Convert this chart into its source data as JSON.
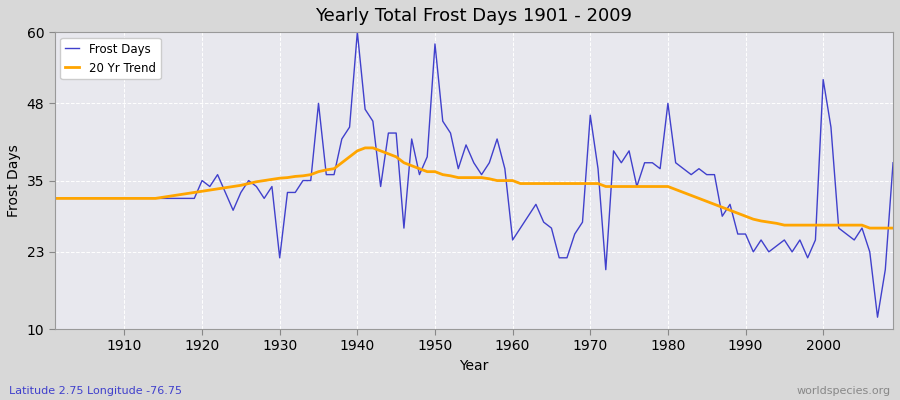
{
  "title": "Yearly Total Frost Days 1901 - 2009",
  "xlabel": "Year",
  "ylabel": "Frost Days",
  "subtitle": "Latitude 2.75 Longitude -76.75",
  "watermark": "worldspecies.org",
  "bg_color": "#e0e0e0",
  "plot_bg_color": "#e8e8f0",
  "line_color": "#4040cc",
  "trend_color": "#ffa500",
  "ylim": [
    10,
    60
  ],
  "yticks": [
    10,
    23,
    35,
    48,
    60
  ],
  "xlim": [
    1901,
    2009
  ],
  "xticks": [
    1910,
    1920,
    1930,
    1940,
    1950,
    1960,
    1970,
    1980,
    1990,
    2000
  ],
  "years": [
    1901,
    1902,
    1903,
    1904,
    1905,
    1906,
    1907,
    1908,
    1909,
    1910,
    1911,
    1912,
    1913,
    1914,
    1915,
    1916,
    1917,
    1918,
    1919,
    1920,
    1921,
    1922,
    1923,
    1924,
    1925,
    1926,
    1927,
    1928,
    1929,
    1930,
    1931,
    1932,
    1933,
    1934,
    1935,
    1936,
    1937,
    1938,
    1939,
    1940,
    1941,
    1942,
    1943,
    1944,
    1945,
    1946,
    1947,
    1948,
    1949,
    1950,
    1951,
    1952,
    1953,
    1954,
    1955,
    1956,
    1957,
    1958,
    1959,
    1960,
    1961,
    1962,
    1963,
    1964,
    1965,
    1966,
    1967,
    1968,
    1969,
    1970,
    1971,
    1972,
    1973,
    1974,
    1975,
    1976,
    1977,
    1978,
    1979,
    1980,
    1981,
    1982,
    1983,
    1984,
    1985,
    1986,
    1987,
    1988,
    1989,
    1990,
    1991,
    1992,
    1993,
    1994,
    1995,
    1996,
    1997,
    1998,
    1999,
    2000,
    2001,
    2002,
    2003,
    2004,
    2005,
    2006,
    2007,
    2008,
    2009
  ],
  "frost_days": [
    32,
    32,
    32,
    32,
    32,
    32,
    32,
    32,
    32,
    32,
    32,
    32,
    32,
    32,
    32,
    32,
    32,
    32,
    32,
    35,
    34,
    36,
    33,
    30,
    33,
    35,
    34,
    32,
    34,
    22,
    33,
    33,
    35,
    35,
    48,
    36,
    36,
    42,
    44,
    60,
    47,
    45,
    34,
    43,
    43,
    27,
    42,
    36,
    39,
    58,
    45,
    43,
    37,
    41,
    38,
    36,
    38,
    42,
    37,
    25,
    27,
    29,
    31,
    28,
    27,
    22,
    22,
    26,
    28,
    46,
    37,
    20,
    40,
    38,
    40,
    34,
    38,
    38,
    37,
    48,
    38,
    37,
    36,
    37,
    36,
    36,
    29,
    31,
    26,
    26,
    23,
    25,
    23,
    24,
    25,
    23,
    25,
    22,
    25,
    52,
    44,
    27,
    26,
    25,
    27,
    23,
    12,
    20,
    38
  ],
  "trend_years": [
    1901,
    1902,
    1903,
    1904,
    1905,
    1906,
    1907,
    1908,
    1909,
    1910,
    1911,
    1912,
    1913,
    1914,
    1915,
    1916,
    1917,
    1918,
    1919,
    1920,
    1921,
    1922,
    1923,
    1924,
    1925,
    1926,
    1927,
    1928,
    1929,
    1930,
    1931,
    1932,
    1933,
    1934,
    1935,
    1936,
    1937,
    1938,
    1939,
    1940,
    1941,
    1942,
    1943,
    1944,
    1945,
    1946,
    1947,
    1948,
    1949,
    1950,
    1951,
    1952,
    1953,
    1954,
    1955,
    1956,
    1957,
    1958,
    1959,
    1960,
    1961,
    1962,
    1963,
    1964,
    1965,
    1966,
    1967,
    1968,
    1969,
    1970,
    1971,
    1972,
    1973,
    1974,
    1975,
    1976,
    1977,
    1978,
    1979,
    1980,
    1981,
    1982,
    1983,
    1984,
    1985,
    1986,
    1987,
    1988,
    1989,
    1990,
    1991,
    1992,
    1993,
    1994,
    1995,
    1996,
    1997,
    1998,
    1999,
    2000,
    2001,
    2002,
    2003,
    2004,
    2005,
    2006,
    2007,
    2008,
    2009
  ],
  "trend_values": [
    32,
    32,
    32,
    32,
    32,
    32,
    32,
    32,
    32,
    32,
    32,
    32,
    32,
    32,
    32.2,
    32.4,
    32.6,
    32.8,
    33.0,
    33.2,
    33.4,
    33.6,
    33.8,
    34.0,
    34.2,
    34.5,
    34.8,
    35.0,
    35.2,
    35.4,
    35.5,
    35.7,
    35.8,
    36.0,
    36.5,
    36.8,
    37.0,
    38.0,
    39.0,
    40.0,
    40.5,
    40.5,
    40.0,
    39.5,
    39.0,
    38.0,
    37.5,
    37.0,
    36.5,
    36.5,
    36.0,
    35.8,
    35.5,
    35.5,
    35.5,
    35.5,
    35.3,
    35.0,
    35.0,
    35.0,
    34.5,
    34.5,
    34.5,
    34.5,
    34.5,
    34.5,
    34.5,
    34.5,
    34.5,
    34.5,
    34.5,
    34.0,
    34.0,
    34.0,
    34.0,
    34.0,
    34.0,
    34.0,
    34.0,
    34.0,
    33.5,
    33.0,
    32.5,
    32.0,
    31.5,
    31.0,
    30.5,
    30.0,
    29.5,
    29.0,
    28.5,
    28.2,
    28.0,
    27.8,
    27.5,
    27.5,
    27.5,
    27.5,
    27.5,
    27.5,
    27.5,
    27.5,
    27.5,
    27.5,
    27.5,
    27.0,
    27.0,
    27.0,
    27.0
  ]
}
